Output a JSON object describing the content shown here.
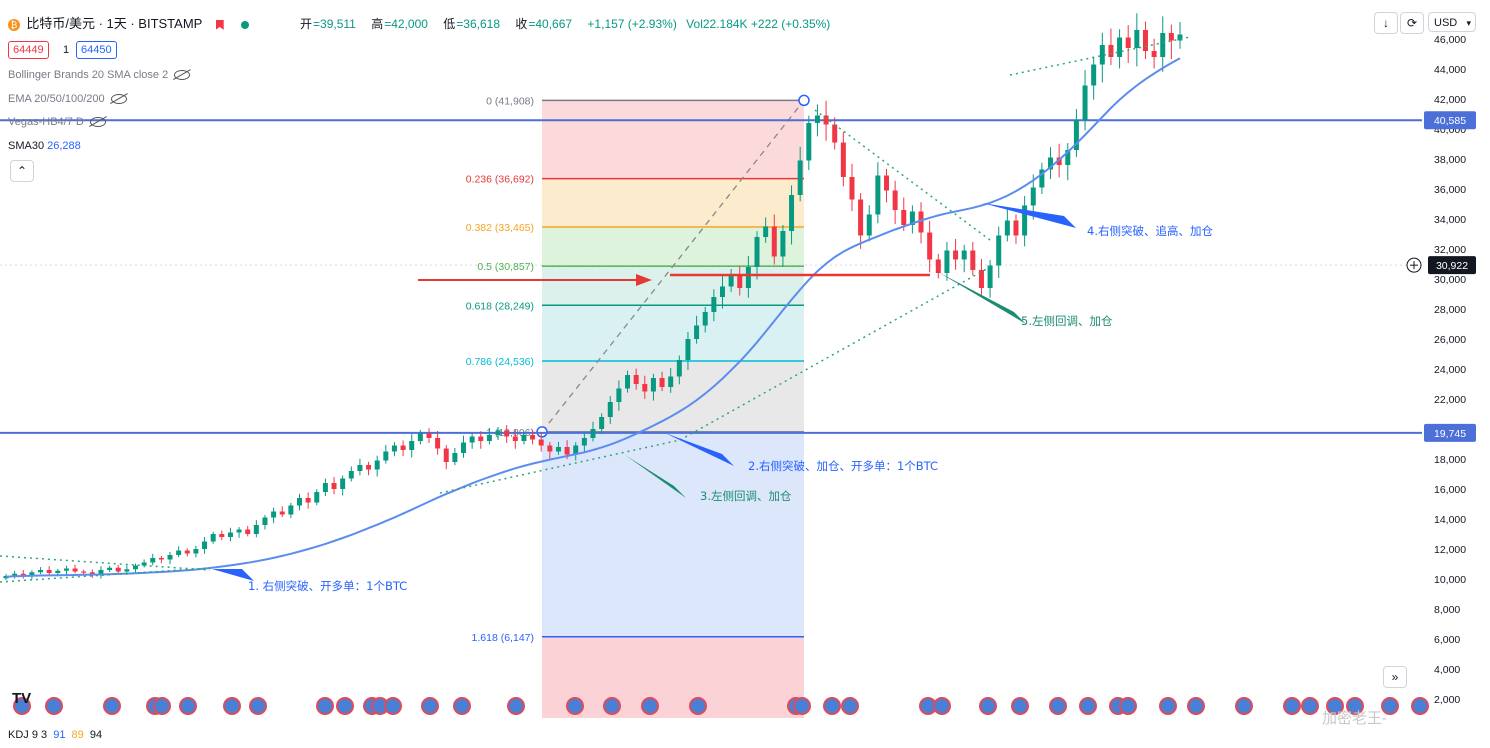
{
  "header": {
    "symbol": "比特币/美元 · 1天 · BITSTAMP",
    "ohlc": [
      {
        "label": "开",
        "value": "=39,511"
      },
      {
        "label": "高",
        "value": "=42,000"
      },
      {
        "label": "低",
        "value": "=36,618"
      },
      {
        "label": "收",
        "value": "=40,667"
      }
    ],
    "change": "+1,157 (+2.93%)",
    "volume": "Vol22.184K +222 (+0.35%)",
    "sell_price": "64449",
    "spread": "1",
    "buy_price": "64450",
    "currency": "USD"
  },
  "indicators": [
    {
      "name": "Bollinger Brands 20 SMA close 2"
    },
    {
      "name": "EMA 20/50/100/200"
    },
    {
      "name": "Vegas-HB4/7 D"
    },
    {
      "name": "SMA30",
      "value": "26,288"
    }
  ],
  "bottom_indicator": {
    "name": "KDJ 9 3",
    "k": "91",
    "d": "89",
    "j": "94"
  },
  "watermark": "加密老王-",
  "colors": {
    "up": "#089981",
    "down": "#f23645",
    "sma": "#5b8def",
    "hline": "#4c6fd8",
    "arrow_blue": "#2962ff",
    "arrow_green": "#1e8c73",
    "arrow_red": "#e53935"
  },
  "chart_data": {
    "type": "candlestick",
    "ylim": [
      1000,
      47000
    ],
    "y_ticks": [
      "2,000",
      "4,000",
      "6,000",
      "8,000",
      "10,000",
      "12,000",
      "14,000",
      "16,000",
      "18,000",
      "20,000",
      "22,000",
      "24,000",
      "26,000",
      "28,000",
      "30,000",
      "32,000",
      "34,000",
      "36,000",
      "38,000",
      "40,000",
      "42,000",
      "44,000",
      "46,000"
    ],
    "price_labels": [
      {
        "value": 40585,
        "text": "40,585"
      },
      {
        "value": 19745,
        "text": "19,745"
      },
      {
        "value": 30922,
        "text": "30,922"
      }
    ],
    "fib_levels": [
      {
        "ratio": "0",
        "value": 41908,
        "text": "0 (41,908)",
        "color": "#787b86"
      },
      {
        "ratio": "0.236",
        "value": 36692,
        "text": "0.236 (36,692)",
        "color": "#e53935"
      },
      {
        "ratio": "0.382",
        "value": 33465,
        "text": "0.382 (33,465)",
        "color": "#f5a623"
      },
      {
        "ratio": "0.5",
        "value": 30857,
        "text": "0.5 (30,857)",
        "color": "#4caf50"
      },
      {
        "ratio": "0.618",
        "value": 28249,
        "text": "0.618 (28,249)",
        "color": "#089981"
      },
      {
        "ratio": "0.786",
        "value": 24536,
        "text": "0.786 (24,536)",
        "color": "#00bcd4"
      },
      {
        "ratio": "1",
        "value": 19806,
        "text": "1 (19,806)",
        "color": "#787b86"
      },
      {
        "ratio": "1.618",
        "value": 6147,
        "text": "1.618 (6,147)",
        "color": "#2962ff"
      }
    ],
    "annotations": [
      {
        "text": "1. 右侧突破、开多单：1个BTC",
        "color": "#2962ff"
      },
      {
        "text": "2.右侧突破、加仓、开多单：1个BTC",
        "color": "#2962ff"
      },
      {
        "text": "3.左侧回调、加仓",
        "color": "#1e8c73"
      },
      {
        "text": "4.右侧突破、追高、加仓",
        "color": "#2962ff"
      },
      {
        "text": "5.左侧回调、加仓",
        "color": "#1e8c73"
      }
    ],
    "closes": [
      10200,
      10350,
      10250,
      10450,
      10600,
      10400,
      10550,
      10700,
      10500,
      10450,
      10300,
      10600,
      10750,
      10500,
      10650,
      10900,
      11100,
      11400,
      11300,
      11600,
      11900,
      11700,
      12000,
      12500,
      13000,
      12800,
      13100,
      13300,
      13000,
      13600,
      14100,
      14500,
      14300,
      14900,
      15400,
      15100,
      15800,
      16400,
      16000,
      16700,
      17200,
      17600,
      17300,
      17900,
      18500,
      18900,
      18600,
      19200,
      19700,
      19400,
      18700,
      17800,
      18400,
      19100,
      19500,
      19200,
      19600,
      19900,
      19500,
      19200,
      19600,
      19300,
      18900,
      18500,
      18800,
      18300,
      18900,
      19400,
      20000,
      20800,
      21800,
      22700,
      23600,
      23000,
      22500,
      23400,
      22800,
      23500,
      24600,
      26000,
      26900,
      27800,
      28800,
      29500,
      30300,
      29400,
      30800,
      32800,
      33500,
      31500,
      33200,
      35600,
      37900,
      40400,
      40900,
      40300,
      39100,
      36800,
      35300,
      32900,
      34300,
      36900,
      35900,
      34600,
      33600,
      34500,
      33100,
      31300,
      30400,
      31900,
      31300,
      31900,
      30600,
      29400,
      30900,
      32900,
      33900,
      32900,
      34900,
      36100,
      37300,
      38100,
      37600,
      38600,
      40600,
      42900,
      44300,
      45600,
      44800,
      46100,
      45400,
      46600,
      45200,
      44800,
      46400,
      45900,
      46300
    ],
    "sma30": [
      10150,
      10180,
      10200,
      10220,
      10230,
      10240,
      10250,
      10260,
      10270,
      10280,
      10290,
      10300,
      10320,
      10340,
      10360,
      10380,
      10410,
      10440,
      10470,
      10500,
      10540,
      10580,
      10630,
      10690,
      10760,
      10830,
      10910,
      10990,
      11080,
      11180,
      11290,
      11410,
      11540,
      11680,
      11830,
      11990,
      12160,
      12340,
      12530,
      12730,
      12940,
      13160,
      13390,
      13620,
      13860,
      14110,
      14360,
      14620,
      14890,
      15160,
      15420,
      15670,
      15910,
      16150,
      16380,
      16600,
      16810,
      17010,
      17200,
      17380,
      17540,
      17690,
      17830,
      17960,
      18080,
      18200,
      18320,
      18450,
      18600,
      18770,
      18960,
      19180,
      19420,
      19680,
      19950,
      20230,
      20520,
      20830,
      21160,
      21520,
      21920,
      22360,
      22840,
      23360,
      23920,
      24500,
      25120,
      25780,
      26480,
      27200,
      27920,
      28620,
      29300,
      29940,
      30520,
      31030,
      31460,
      31820,
      32120,
      32380,
      32620,
      32850,
      33080,
      33300,
      33510,
      33710,
      33900,
      34080,
      34240,
      34380,
      34500,
      34620,
      34750,
      34900,
      35080,
      35300,
      35560,
      35860,
      36200,
      36580,
      37000,
      37460,
      37950,
      38470,
      39020,
      39600,
      40200,
      40800,
      41400,
      41950,
      42450,
      42900,
      43320,
      43700,
      44060,
      44400,
      44720
    ]
  }
}
